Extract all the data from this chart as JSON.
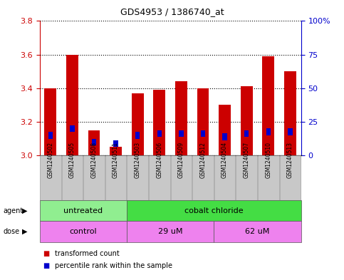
{
  "title": "GDS4953 / 1386740_at",
  "samples": [
    "GSM1240502",
    "GSM1240505",
    "GSM1240508",
    "GSM1240511",
    "GSM1240503",
    "GSM1240506",
    "GSM1240509",
    "GSM1240512",
    "GSM1240504",
    "GSM1240507",
    "GSM1240510",
    "GSM1240513"
  ],
  "bar_values": [
    3.4,
    3.6,
    3.15,
    3.05,
    3.37,
    3.39,
    3.44,
    3.4,
    3.3,
    3.41,
    3.59,
    3.5
  ],
  "blue_values": [
    3.12,
    3.16,
    3.08,
    3.07,
    3.12,
    3.13,
    3.13,
    3.13,
    3.11,
    3.13,
    3.14,
    3.14
  ],
  "ylim_left": [
    3.0,
    3.8
  ],
  "ylim_right": [
    0,
    100
  ],
  "yticks_left": [
    3.0,
    3.2,
    3.4,
    3.6,
    3.8
  ],
  "yticks_right": [
    0,
    25,
    50,
    75,
    100
  ],
  "ytick_labels_right": [
    "0",
    "25",
    "50",
    "75",
    "100%"
  ],
  "bar_color": "#cc0000",
  "blue_color": "#0000cc",
  "bar_bottom": 3.0,
  "agent_patches": [
    {
      "text": "untreated",
      "start": 0,
      "end": 3,
      "color": "#90ee90"
    },
    {
      "text": "cobalt chloride",
      "start": 4,
      "end": 11,
      "color": "#44dd44"
    }
  ],
  "dose_patches": [
    {
      "text": "control",
      "start": 0,
      "end": 3,
      "color": "#ee82ee"
    },
    {
      "text": "29 uM",
      "start": 4,
      "end": 7,
      "color": "#ee82ee"
    },
    {
      "text": "62 uM",
      "start": 8,
      "end": 11,
      "color": "#ee82ee"
    }
  ],
  "legend_items": [
    {
      "color": "#cc0000",
      "label": "transformed count"
    },
    {
      "color": "#0000cc",
      "label": "percentile rank within the sample"
    }
  ],
  "background_color": "#ffffff",
  "grid_color": "#000000",
  "tick_color_left": "#cc0000",
  "tick_color_right": "#0000cc",
  "gray_bg": "#c8c8c8",
  "n_samples": 12
}
